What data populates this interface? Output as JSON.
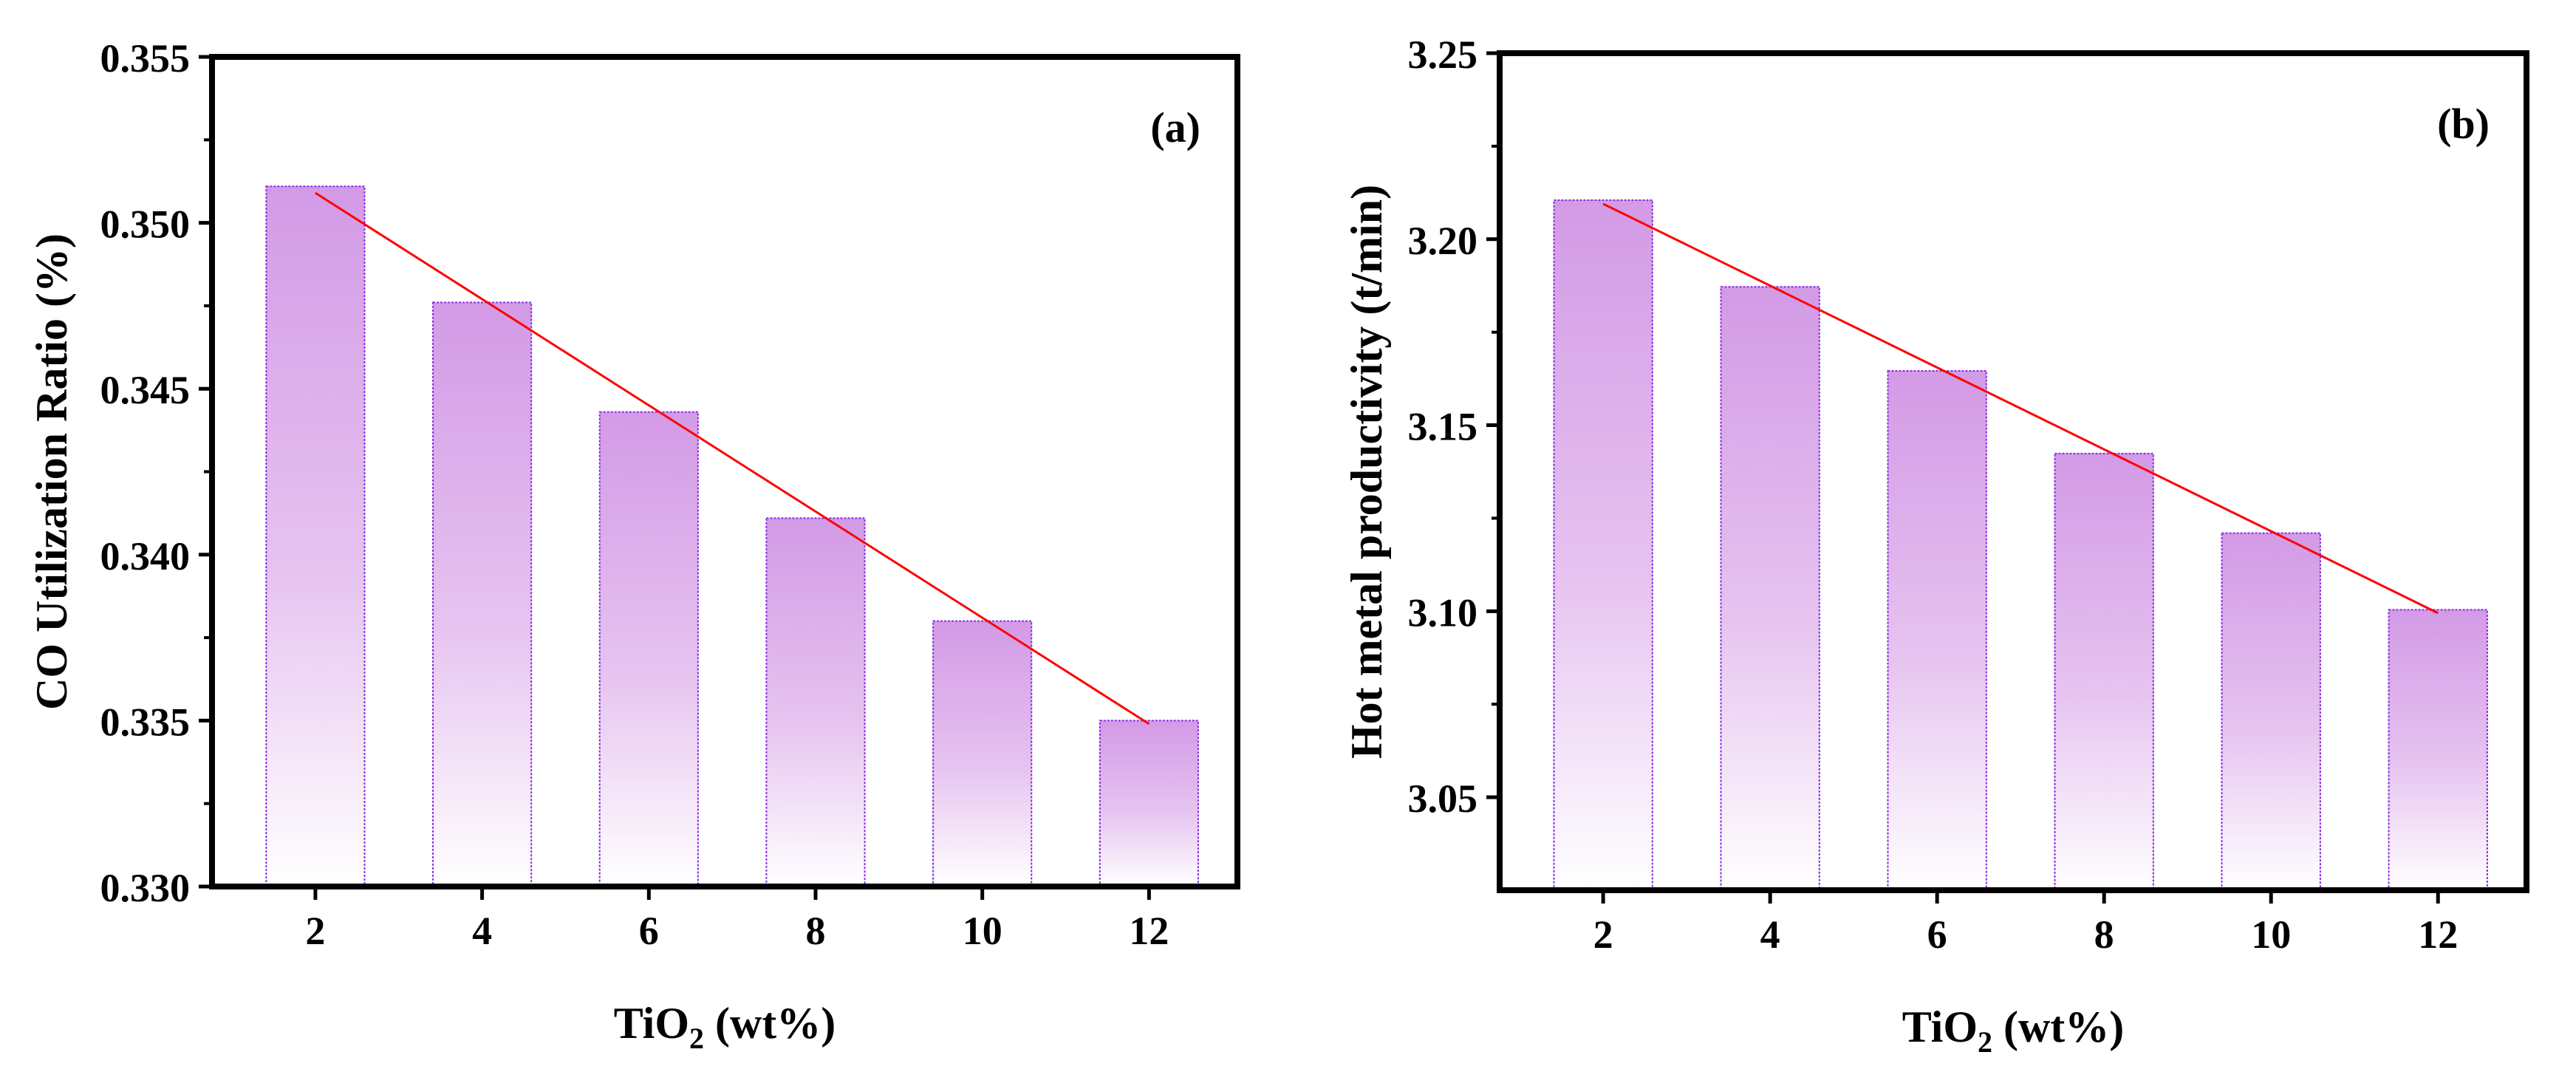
{
  "chart_data": [
    {
      "type": "bar",
      "panel_label": "(a)",
      "categories": [
        "2",
        "4",
        "6",
        "8",
        "10",
        "12"
      ],
      "values": [
        0.3511,
        0.3476,
        0.3443,
        0.3411,
        0.338,
        0.335
      ],
      "trend_line": {
        "start": 0.3509,
        "end": 0.3349
      },
      "ylim": [
        0.33,
        0.355
      ],
      "yticks": [
        "0.330",
        "0.335",
        "0.340",
        "0.345",
        "0.350",
        "0.355"
      ],
      "xlabel_main": "TiO",
      "xlabel_sub": "2",
      "xlabel_tail": " (wt%)",
      "ylabel": "CO Utilization Ratio (%)"
    },
    {
      "type": "bar",
      "panel_label": "(b)",
      "categories": [
        "2",
        "4",
        "6",
        "8",
        "10",
        "12"
      ],
      "values": [
        3.2105,
        3.1872,
        3.1646,
        3.1424,
        3.121,
        3.1004
      ],
      "trend_line": {
        "start": 3.2095,
        "end": 3.0995
      },
      "ylim": [
        3.025,
        3.25
      ],
      "yticks": [
        "3.05",
        "3.10",
        "3.15",
        "3.20",
        "3.25"
      ],
      "xlabel_main": "TiO",
      "xlabel_sub": "2",
      "xlabel_tail": " (wt%)",
      "ylabel": "Hot metal productivity (t/min)"
    }
  ],
  "colors": {
    "bar_top": "#d39ae6",
    "bar_bottom": "#ffffff",
    "bar_border": "#8a2be2",
    "trend": "#ff0000",
    "axis": "#000000"
  }
}
